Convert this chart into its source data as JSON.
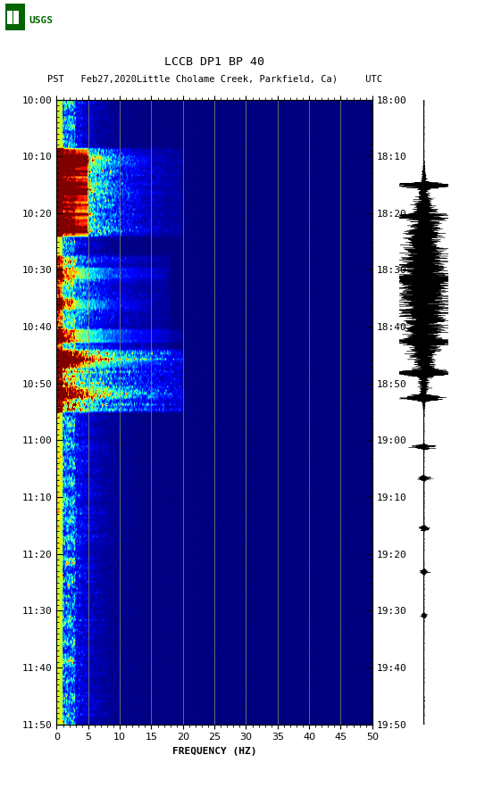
{
  "title_line1": "LCCB DP1 BP 40",
  "title_line2": "PST   Feb27,2020Little Cholame Creek, Parkfield, Ca)     UTC",
  "xlabel": "FREQUENCY (HZ)",
  "freq_min": 0,
  "freq_max": 50,
  "freq_ticks": [
    0,
    5,
    10,
    15,
    20,
    25,
    30,
    35,
    40,
    45,
    50
  ],
  "left_time_labels": [
    "10:00",
    "10:10",
    "10:20",
    "10:30",
    "10:40",
    "10:50",
    "11:00",
    "11:10",
    "11:20",
    "11:30",
    "11:40",
    "11:50"
  ],
  "right_time_labels": [
    "18:00",
    "18:10",
    "18:20",
    "18:30",
    "18:40",
    "18:50",
    "19:00",
    "19:10",
    "19:20",
    "19:30",
    "19:40",
    "19:50"
  ],
  "colormap": "jet",
  "vertical_grid_color": "#999966",
  "vertical_grid_freqs": [
    5,
    10,
    15,
    20,
    25,
    30,
    35,
    40,
    45
  ],
  "n_time_bins": 660,
  "n_freq_bins": 500,
  "seed": 42,
  "logo_color": "#006400"
}
